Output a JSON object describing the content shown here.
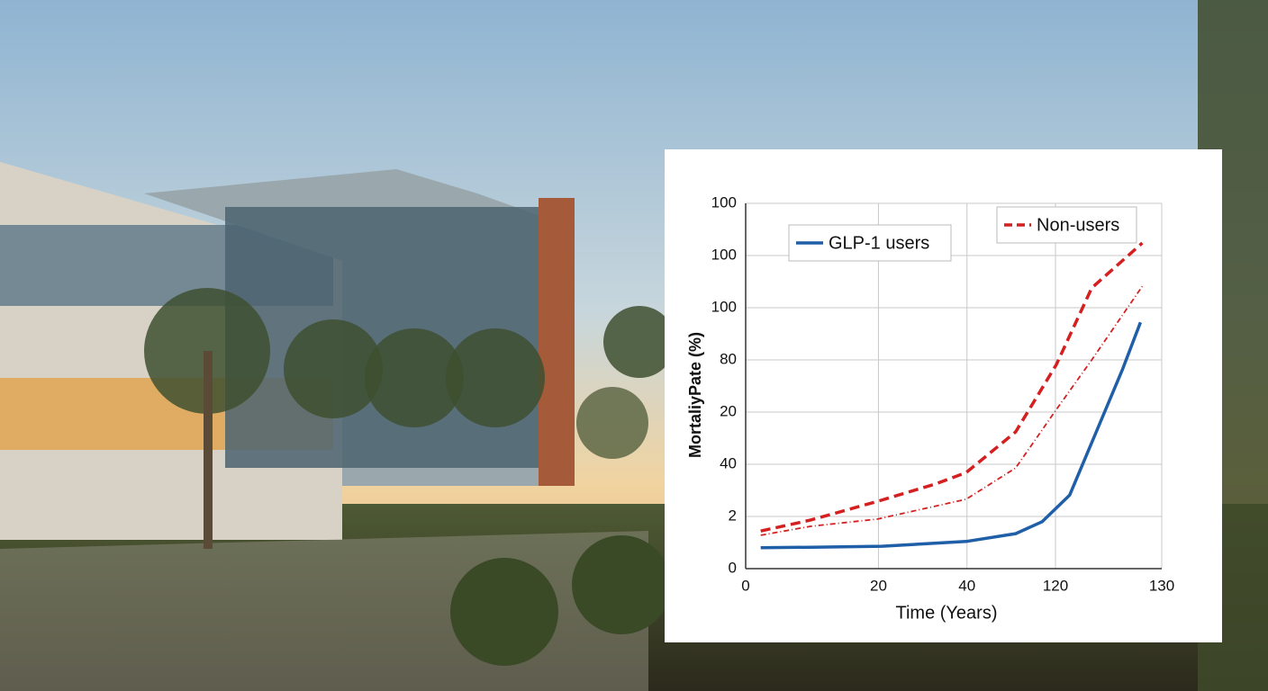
{
  "chart_data": {
    "type": "line",
    "x_label": "Time (Years)",
    "y_label": "MortaliyPate (%)",
    "xlim": [
      0,
      4.7
    ],
    "xticks": [
      0,
      {
        "value": 1.5,
        "label": "20"
      },
      {
        "value": 2.5,
        "label": "40"
      },
      {
        "value": 3.5,
        "label": "120"
      },
      {
        "value": 4.7,
        "label": "130"
      }
    ],
    "ylim": [
      0,
      7
    ],
    "yticks": [
      0,
      {
        "value": 1,
        "label": "2"
      },
      {
        "value": 2,
        "label": "40"
      },
      {
        "value": 3,
        "label": "20"
      },
      {
        "value": 4,
        "label": "80"
      },
      {
        "value": 5,
        "label": "100"
      },
      {
        "value": 6,
        "label": "100"
      },
      {
        "value": 7,
        "label": "100"
      }
    ],
    "grid": true,
    "series": [
      {
        "name": "GLP-1 users",
        "color": "#1f5fa8",
        "style": "solid",
        "x": [
          0.17,
          0.73,
          1.54,
          2.49,
          3.05,
          3.35,
          3.66,
          3.96,
          4.26,
          4.46
        ],
        "values": [
          0.4,
          0.41,
          0.43,
          0.52,
          0.67,
          0.9,
          1.41,
          2.62,
          3.83,
          4.72
        ]
      },
      {
        "name": "Non-users",
        "color": "#d42020",
        "style": "dashed",
        "x": [
          0.17,
          0.73,
          1.49,
          2.14,
          2.49,
          3.05,
          3.51,
          3.91,
          4.48
        ],
        "values": [
          0.72,
          0.93,
          1.29,
          1.62,
          1.84,
          2.62,
          3.91,
          5.38,
          6.24
        ]
      },
      {
        "color": "#d42020",
        "style": "dotted",
        "x": [
          0.17,
          0.73,
          1.49,
          2.49,
          3.05,
          3.51,
          3.91,
          4.48
        ],
        "values": [
          0.64,
          0.81,
          0.95,
          1.33,
          1.93,
          3.05,
          4.0,
          5.41
        ]
      }
    ]
  }
}
